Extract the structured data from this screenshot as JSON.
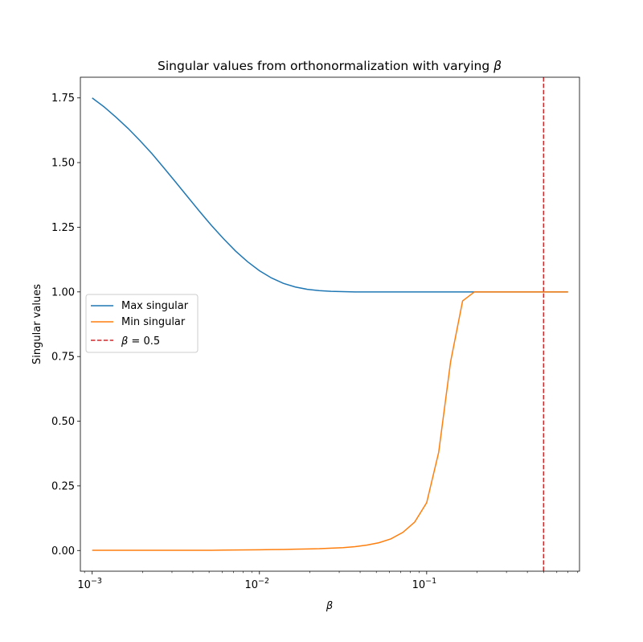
{
  "chart_data": {
    "type": "line",
    "title": "Singular values from orthonormalization with varying ",
    "title_symbol": "β",
    "xlabel": "β",
    "ylabel": "Singular values",
    "xscale": "log",
    "xlim": [
      0.00085,
      0.82
    ],
    "ylim": [
      -0.08,
      1.83
    ],
    "xticks": [
      {
        "value": 0.001,
        "base": "10",
        "exp": "−3"
      },
      {
        "value": 0.01,
        "base": "10",
        "exp": "−2"
      },
      {
        "value": 0.1,
        "base": "10",
        "exp": "−1"
      }
    ],
    "yticks": [
      {
        "value": 0.0,
        "label": "0.00"
      },
      {
        "value": 0.25,
        "label": "0.25"
      },
      {
        "value": 0.5,
        "label": "0.50"
      },
      {
        "value": 0.75,
        "label": "0.75"
      },
      {
        "value": 1.0,
        "label": "1.00"
      },
      {
        "value": 1.25,
        "label": "1.25"
      },
      {
        "value": 1.5,
        "label": "1.50"
      },
      {
        "value": 1.75,
        "label": "1.75"
      }
    ],
    "grid": false,
    "legend_position": "center-left",
    "series": [
      {
        "name": "Max singular",
        "color": "#1f77b4",
        "style": "solid",
        "x": [
          0.001,
          0.00118,
          0.00139,
          0.00164,
          0.00193,
          0.00228,
          0.00268,
          0.00316,
          0.00373,
          0.0044,
          0.00518,
          0.00611,
          0.0072,
          0.00848,
          0.01,
          0.0118,
          0.0139,
          0.0164,
          0.0193,
          0.0228,
          0.0268,
          0.0316,
          0.0373,
          0.044,
          0.0518,
          0.0611,
          0.072,
          0.0848,
          0.1,
          0.118,
          0.139,
          0.164,
          0.193,
          0.228,
          0.268,
          0.316,
          0.373,
          0.44,
          0.518,
          0.611,
          0.7
        ],
        "y": [
          1.75,
          1.715,
          1.675,
          1.632,
          1.585,
          1.534,
          1.48,
          1.424,
          1.367,
          1.31,
          1.256,
          1.205,
          1.158,
          1.117,
          1.082,
          1.054,
          1.033,
          1.019,
          1.01,
          1.005,
          1.002,
          1.001,
          1.0,
          1.0,
          1.0,
          1.0,
          1.0,
          1.0,
          1.0,
          1.0,
          1.0,
          1.0,
          1.0,
          1.0,
          1.0,
          1.0,
          1.0,
          1.0,
          1.0,
          1.0,
          1.0
        ]
      },
      {
        "name": "Min singular",
        "color": "#ff7f0e",
        "style": "solid",
        "x": [
          0.001,
          0.00118,
          0.00139,
          0.00164,
          0.00193,
          0.00228,
          0.00268,
          0.00316,
          0.00373,
          0.0044,
          0.00518,
          0.00611,
          0.0072,
          0.00848,
          0.01,
          0.0118,
          0.0139,
          0.0164,
          0.0193,
          0.0228,
          0.0268,
          0.0316,
          0.0373,
          0.044,
          0.0518,
          0.0611,
          0.072,
          0.0848,
          0.1,
          0.118,
          0.139,
          0.164,
          0.193,
          0.228,
          0.268,
          0.316,
          0.373,
          0.44,
          0.518,
          0.611,
          0.7
        ],
        "y": [
          0.001,
          0.001,
          0.001,
          0.001,
          0.001,
          0.001,
          0.001,
          0.001,
          0.001,
          0.001,
          0.001,
          0.0015,
          0.002,
          0.0025,
          0.003,
          0.0035,
          0.004,
          0.005,
          0.006,
          0.007,
          0.009,
          0.011,
          0.015,
          0.021,
          0.03,
          0.045,
          0.07,
          0.11,
          0.185,
          0.38,
          0.73,
          0.965,
          1.0,
          1.0,
          1.0,
          1.0,
          1.0,
          1.0,
          1.0,
          1.0,
          1.0
        ]
      }
    ],
    "vline": {
      "x": 0.5,
      "color": "#d62728",
      "style": "dashed",
      "legend_symbol": "β",
      "legend_rest": " = 0.5"
    }
  }
}
